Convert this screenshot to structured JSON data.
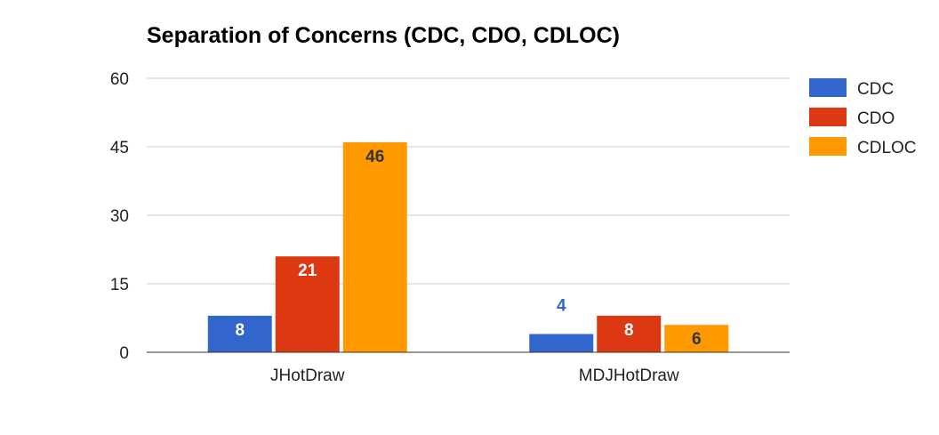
{
  "chart_data": {
    "type": "bar",
    "title": "Separation of Concerns (CDC, CDO, CDLOC)",
    "xlabel": "",
    "ylabel": "",
    "categories": [
      "JHotDraw",
      "MDJHotDraw"
    ],
    "series": [
      {
        "name": "CDC",
        "values": [
          8,
          4
        ],
        "color": "#3366cc",
        "labels": [
          "8",
          "4"
        ]
      },
      {
        "name": "CDO",
        "values": [
          21,
          8
        ],
        "color": "#dc3912",
        "labels": [
          "21",
          "8"
        ]
      },
      {
        "name": "CDLOC",
        "values": [
          46,
          6
        ],
        "color": "#ff9900",
        "labels": [
          "46",
          "6"
        ]
      }
    ],
    "ylim": [
      0,
      60
    ],
    "yticks": [
      "0",
      "15",
      "30",
      "45",
      "60"
    ],
    "ytick_values": [
      0,
      15,
      30,
      45,
      60
    ],
    "grid": true,
    "legend_position": "right"
  }
}
